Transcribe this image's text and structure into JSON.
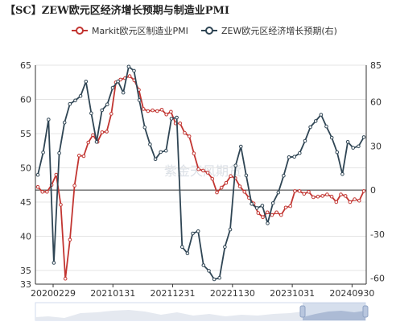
{
  "title": "【SC】ZEW欧元区经济增长预期与制造业PMI",
  "watermark": "紫金天风期货",
  "colors": {
    "pmi": "#c23531",
    "zew": "#2f4554",
    "zero_line": "#333333"
  },
  "chart_data": {
    "type": "line",
    "title": "【SC】ZEW欧元区经济增长预期与制造业PMI",
    "legend": {
      "position": "top-center",
      "entries": [
        "Markit欧元区制造业PMI",
        "ZEW欧元区经济增长预期(右)"
      ]
    },
    "x_tick_labels": [
      "20200229",
      "20210131",
      "20211231",
      "20221130",
      "20231031",
      "20240930"
    ],
    "y_left": {
      "min": 33,
      "max": 65,
      "ticks": [
        33,
        35,
        40,
        45,
        50,
        55,
        60,
        65
      ]
    },
    "y_right": {
      "min": -64,
      "max": 85,
      "ticks": [
        -60,
        -30,
        0,
        30,
        60,
        85
      ]
    },
    "grid": "horizontal",
    "series": [
      {
        "name": "Markit欧元区制造业PMI",
        "axis": "left",
        "values": [
          47.2,
          46.5,
          46.5,
          47.5,
          49.0,
          44.6,
          33.8,
          39.5,
          47.4,
          51.8,
          51.7,
          53.7,
          54.8,
          53.8,
          55.2,
          55.3,
          57.9,
          62.5,
          62.9,
          63.1,
          63.4,
          62.8,
          61.4,
          58.6,
          58.3,
          58.4,
          58.3,
          58.5,
          57.8,
          58.2,
          56.5,
          56.5,
          55.1,
          54.6,
          52.1,
          49.8,
          49.6,
          49.3,
          48.4,
          46.4,
          47.1,
          47.8,
          48.8,
          48.5,
          47.3,
          46.5,
          45.6,
          44.8,
          43.4,
          42.8,
          43.5,
          43.1,
          43.5,
          43.1,
          44.2,
          44.4,
          46.6,
          46.6,
          46.2,
          46.5,
          45.7,
          45.8,
          45.9,
          46.1,
          45.8,
          45.0,
          46.1,
          45.9,
          45.0,
          45.4,
          45.2,
          46.6
        ],
        "markers": true,
        "smooth": false
      },
      {
        "name": "ZEW欧元区经济增长预期(右)",
        "axis": "right",
        "values": [
          10.4,
          25.6,
          48.0,
          -49.5,
          25.2,
          46.0,
          58.6,
          61.0,
          64.0,
          73.9,
          52.3,
          32.8,
          54.4,
          58.3,
          69.6,
          74.0,
          66.3,
          84.0,
          81.2,
          61.2,
          42.7,
          31.1,
          21.0,
          25.9,
          26.8,
          48.6,
          49.4,
          -38.7,
          -43.0,
          -29.5,
          -28.0,
          -51.1,
          -54.9,
          -60.7,
          -59.7,
          -38.7,
          -26.8,
          16.7,
          29.7,
          10.0,
          -9.4,
          -12.2,
          -10.6,
          -22.6,
          -8.9,
          -1.6,
          9.8,
          22.4,
          22.7,
          25.2,
          33.5,
          42.9,
          47.0,
          51.3,
          43.3,
          35.7,
          25.8,
          10.9,
          32.8,
          28.8,
          29.8,
          36.0
        ],
        "markers": true,
        "smooth": false
      }
    ]
  }
}
